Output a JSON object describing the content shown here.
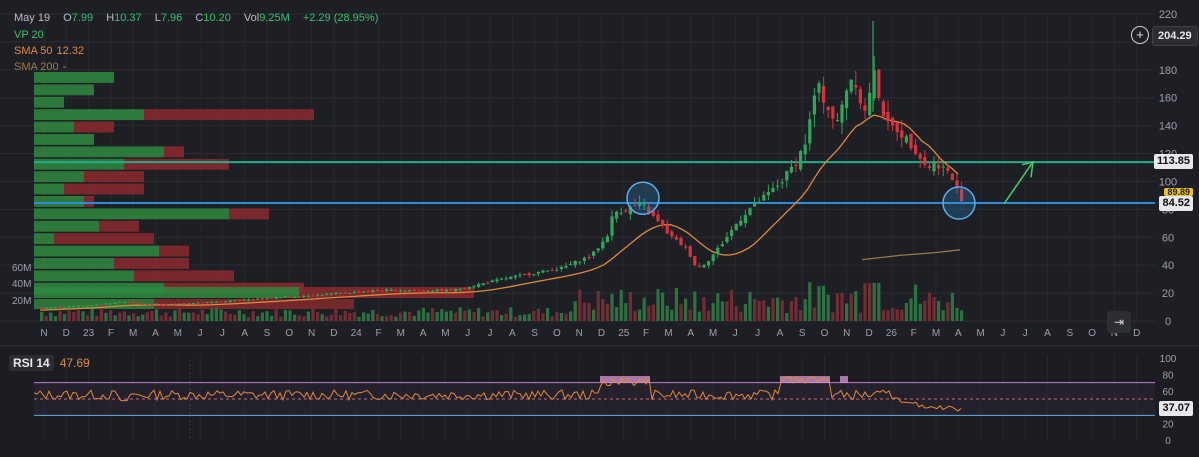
{
  "legend": {
    "date": "May 19",
    "open_label": "O",
    "open": "7.99",
    "high_label": "H",
    "high": "10.37",
    "low_label": "L",
    "low": "7.96",
    "close_label": "C",
    "close": "10.20",
    "vol_label": "Vol",
    "vol": "9.25M",
    "change": "+2.29 (28.95%)",
    "vp": "VP 20",
    "sma50_label": "SMA 50",
    "sma50_value": "12.32",
    "sma200_label": "SMA 200",
    "sma200_value": "-"
  },
  "toolbar": {
    "plus_icon": "plus-circle-icon",
    "last_price": "204.29",
    "goto_icon": "go-to-realtime-icon"
  },
  "badges": {
    "green_level": "113.85",
    "yellow_hidden": "89.89",
    "blue_level": "84.52",
    "rsi_value": "37.07"
  },
  "rsi": {
    "label": "RSI 14",
    "value": "47.69"
  },
  "colors": {
    "background": "#1e1f24",
    "up": "#2fa65a",
    "down": "#d9323c",
    "green_line": "#1fae8a",
    "blue_line": "#2a8fd8",
    "sma50": "#e0883a",
    "sma200": "#9a7a4a",
    "rsi_line": "#e08a3c",
    "rsi_band": "#c77dd8"
  },
  "chart_data": [
    {
      "type": "candlestick",
      "y_axis_ticks": [
        0,
        20,
        40,
        60,
        80,
        100,
        120,
        140,
        160,
        180,
        200,
        220
      ],
      "ylim": [
        0,
        220
      ],
      "x_axis_ticks": [
        "N",
        "D",
        "23",
        "F",
        "M",
        "A",
        "M",
        "J",
        "J",
        "A",
        "S",
        "O",
        "N",
        "D",
        "24",
        "F",
        "M",
        "A",
        "M",
        "J",
        "J",
        "A",
        "S",
        "O",
        "N",
        "D",
        "25",
        "F",
        "M",
        "A",
        "M",
        "J",
        "J",
        "A",
        "S",
        "O",
        "N",
        "D",
        "26",
        "F",
        "M",
        "A",
        "M",
        "J",
        "J",
        "A",
        "S",
        "O",
        "N",
        "D"
      ],
      "volume_axis_ticks": [
        "20M",
        "40M",
        "60M"
      ],
      "horizontal_levels": [
        {
          "value": 113.85,
          "color": "green"
        },
        {
          "value": 84.52,
          "color": "blue"
        }
      ],
      "price_path": [
        [
          0,
          8
        ],
        [
          60,
          10
        ],
        [
          100,
          12
        ],
        [
          120,
          14
        ],
        [
          140,
          12
        ],
        [
          170,
          12
        ],
        [
          190,
          13
        ],
        [
          220,
          14
        ],
        [
          260,
          16
        ],
        [
          300,
          18
        ],
        [
          340,
          20
        ],
        [
          380,
          22
        ],
        [
          420,
          22
        ],
        [
          450,
          22
        ],
        [
          470,
          25
        ],
        [
          500,
          30
        ],
        [
          530,
          34
        ],
        [
          560,
          38
        ],
        [
          590,
          47
        ],
        [
          605,
          60
        ],
        [
          612,
          78
        ],
        [
          625,
          80
        ],
        [
          640,
          84
        ],
        [
          655,
          72
        ],
        [
          670,
          60
        ],
        [
          685,
          52
        ],
        [
          695,
          38
        ],
        [
          705,
          42
        ],
        [
          720,
          55
        ],
        [
          735,
          70
        ],
        [
          750,
          82
        ],
        [
          765,
          90
        ],
        [
          780,
          100
        ],
        [
          795,
          115
        ],
        [
          805,
          130
        ],
        [
          815,
          170
        ],
        [
          825,
          155
        ],
        [
          835,
          140
        ],
        [
          848,
          175
        ],
        [
          856,
          170
        ],
        [
          862,
          145
        ],
        [
          872,
          178
        ],
        [
          878,
          160
        ],
        [
          885,
          140
        ],
        [
          895,
          138
        ],
        [
          905,
          130
        ],
        [
          915,
          122
        ],
        [
          925,
          110
        ],
        [
          935,
          113
        ],
        [
          945,
          108
        ],
        [
          952,
          100
        ],
        [
          960,
          88
        ]
      ],
      "volume_profile": [
        {
          "up": 80,
          "down": 0
        },
        {
          "up": 60,
          "down": 0
        },
        {
          "up": 30,
          "down": 0
        },
        {
          "up": 110,
          "down": 170
        },
        {
          "up": 40,
          "down": 40
        },
        {
          "up": 60,
          "down": 0
        },
        {
          "up": 130,
          "down": 20
        },
        {
          "up": 90,
          "down": 105
        },
        {
          "up": 50,
          "down": 60
        },
        {
          "up": 30,
          "down": 80
        },
        {
          "up": 50,
          "down": 10
        },
        {
          "up": 195,
          "down": 40
        },
        {
          "up": 65,
          "down": 40
        },
        {
          "up": 20,
          "down": 100
        },
        {
          "up": 125,
          "down": 30
        },
        {
          "up": 80,
          "down": 75
        },
        {
          "up": 100,
          "down": 100
        },
        {
          "up": 130,
          "down": 140
        }
      ],
      "rsi_levels": [
        70,
        50,
        30
      ],
      "rsi_axis_ticks": [
        0,
        20,
        40,
        60,
        80,
        100
      ]
    }
  ]
}
